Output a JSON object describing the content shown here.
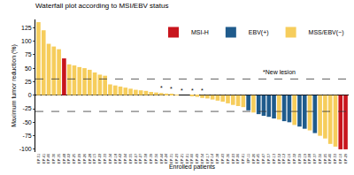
{
  "chart_data": {
    "type": "bar",
    "panel_label": "a",
    "title": "Waterfall plot according to MSI/EBV status",
    "x_label": "Enrolled patients",
    "y_label": "Maximum tumor reduction (%)",
    "categories": [
      "EP-51",
      "EP-41",
      "EP-46",
      "EP-30",
      "EP-35",
      "EP-48",
      "EP-02",
      "EP-25",
      "EP-09",
      "EP-26",
      "EP-28",
      "EP-15",
      "EP-22",
      "EP-33",
      "EP-34",
      "EP-18",
      "EP-42",
      "EP-04",
      "EP-55",
      "EP-07",
      "EP-27",
      "EP-58",
      "EP-39",
      "EP-56",
      "EP-44",
      "EP-24",
      "EP-31",
      "EP-23",
      "EP-21",
      "EP-01",
      "EP-60",
      "EP-49",
      "EP-54",
      "EP-17",
      "EP-14",
      "EP-38",
      "EP-43",
      "EP-36",
      "EP-03",
      "EP-06",
      "EP-61",
      "EP-11",
      "EP-20",
      "EP-45",
      "EP-47",
      "EP-57",
      "EP-13",
      "EP-52",
      "EP-12",
      "EP-16",
      "EP-32",
      "EP-59",
      "EP-19",
      "EP-08",
      "EP-37",
      "EP-50",
      "EP-05",
      "EP-40",
      "EP-53",
      "EP-10",
      "EP-29"
    ],
    "values": [
      135,
      120,
      95,
      90,
      85,
      68,
      57,
      55,
      52,
      50,
      47,
      42,
      38,
      36,
      20,
      18,
      16,
      14,
      12,
      10,
      9,
      8,
      6,
      5,
      4,
      3,
      2,
      1,
      0,
      0,
      -2,
      -3,
      -5,
      -6,
      -8,
      -10,
      -12,
      -15,
      -18,
      -20,
      -22,
      -28,
      -32,
      -35,
      -38,
      -40,
      -43,
      -45,
      -48,
      -50,
      -55,
      -58,
      -62,
      -65,
      -70,
      -75,
      -80,
      -90,
      -95,
      -100,
      -100
    ],
    "groups": [
      "MSS/EBV(−)",
      "MSS/EBV(−)",
      "MSS/EBV(−)",
      "MSS/EBV(−)",
      "MSS/EBV(−)",
      "MSI-H",
      "MSS/EBV(−)",
      "MSS/EBV(−)",
      "MSS/EBV(−)",
      "MSS/EBV(−)",
      "MSS/EBV(−)",
      "MSS/EBV(−)",
      "MSS/EBV(−)",
      "MSS/EBV(−)",
      "MSS/EBV(−)",
      "MSS/EBV(−)",
      "MSS/EBV(−)",
      "MSS/EBV(−)",
      "MSS/EBV(−)",
      "MSS/EBV(−)",
      "MSS/EBV(−)",
      "MSS/EBV(−)",
      "MSS/EBV(−)",
      "MSS/EBV(−)",
      "MSS/EBV(−)",
      "MSS/EBV(−)",
      "MSS/EBV(−)",
      "MSS/EBV(−)",
      "MSS/EBV(−)",
      "MSS/EBV(−)",
      "MSS/EBV(−)",
      "MSS/EBV(−)",
      "MSS/EBV(−)",
      "MSS/EBV(−)",
      "MSS/EBV(−)",
      "MSS/EBV(−)",
      "MSS/EBV(−)",
      "MSS/EBV(−)",
      "MSS/EBV(−)",
      "MSS/EBV(−)",
      "MSS/EBV(−)",
      "EBV(+)",
      "MSS/EBV(−)",
      "EBV(+)",
      "EBV(+)",
      "EBV(+)",
      "EBV(+)",
      "MSS/EBV(−)",
      "EBV(+)",
      "EBV(+)",
      "MSS/EBV(−)",
      "EBV(+)",
      "EBV(+)",
      "MSS/EBV(−)",
      "EBV(+)",
      "MSS/EBV(−)",
      "MSS/EBV(−)",
      "MSS/EBV(−)",
      "MSS/EBV(−)",
      "MSI-H",
      "MSI-H"
    ],
    "series": [
      {
        "name": "MSI-H",
        "color": "#c8151d"
      },
      {
        "name": "EBV(+)",
        "color": "#1f5b8c"
      },
      {
        "name": "MSS/EBV(−)",
        "color": "#f6cd5c"
      }
    ],
    "new_lesion": {
      "symbol": "*",
      "categories": [
        "EP-44",
        "EP-31",
        "EP-21",
        "EP-60",
        "EP-54"
      ]
    },
    "reference_lines": [
      30,
      -30
    ],
    "annotations": [
      {
        "text": "*New lesion"
      }
    ],
    "ylim": [
      -105,
      140
    ],
    "yticks": [
      -100,
      -75,
      -50,
      -25,
      0,
      25,
      50,
      75,
      100,
      125
    ],
    "legend": "upper right",
    "grid": false
  }
}
